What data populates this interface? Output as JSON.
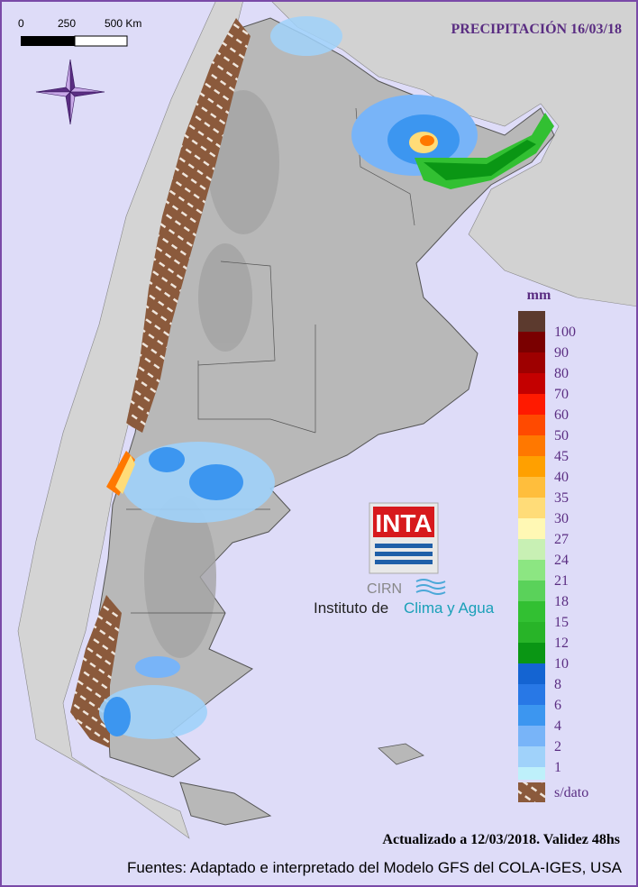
{
  "header": {
    "title": "PRECIPITACIÓN 16/03/18"
  },
  "scale_bar": {
    "labels": [
      "0",
      "250",
      "500 Km"
    ]
  },
  "legend": {
    "unit": "mm",
    "items": [
      {
        "label": "100",
        "color": "#5c3a2e"
      },
      {
        "label": "90",
        "color": "#7a0000"
      },
      {
        "label": "80",
        "color": "#9e0000"
      },
      {
        "label": "70",
        "color": "#c40000"
      },
      {
        "label": "60",
        "color": "#ff1a00"
      },
      {
        "label": "50",
        "color": "#ff4a00"
      },
      {
        "label": "45",
        "color": "#ff7800"
      },
      {
        "label": "40",
        "color": "#ffa000"
      },
      {
        "label": "35",
        "color": "#ffbe3c"
      },
      {
        "label": "30",
        "color": "#ffdc78"
      },
      {
        "label": "27",
        "color": "#fff8b4"
      },
      {
        "label": "24",
        "color": "#c8f0b4"
      },
      {
        "label": "21",
        "color": "#8ce682"
      },
      {
        "label": "18",
        "color": "#5ad25a"
      },
      {
        "label": "15",
        "color": "#32c032"
      },
      {
        "label": "12",
        "color": "#28b428"
      },
      {
        "label": "10",
        "color": "#0a9614"
      },
      {
        "label": "8",
        "color": "#1464d2"
      },
      {
        "label": "6",
        "color": "#2878e6"
      },
      {
        "label": "4",
        "color": "#3c96f0"
      },
      {
        "label": "2",
        "color": "#78b4f8"
      },
      {
        "label": "1",
        "color": "#a0d2fa"
      }
    ],
    "last_color": "#bef0fa",
    "no_data": "s/dato"
  },
  "logo": {
    "brand": "INTA",
    "unit": "CIRN",
    "institute": "Instituto de",
    "institute_highlight": "Clima y Agua"
  },
  "footer": {
    "updated": "Actualizado a 12/03/2018. Validez 48hs",
    "sources": "Fuentes: Adaptado e interpretado del Modelo GFS del COLA-IGES, USA"
  }
}
